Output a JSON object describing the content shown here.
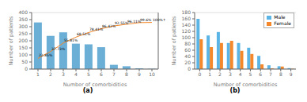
{
  "chart_data": [
    {
      "type": "bar",
      "title": "(a)",
      "xlabel": "Number of comorbidities",
      "ylabel": "Number of patients",
      "categories": [
        1,
        2,
        3,
        4,
        5,
        6,
        7,
        8,
        9,
        10
      ],
      "series": [
        {
          "type": "bar",
          "color": "#6baed6",
          "values": [
            330,
            235,
            260,
            180,
            175,
            155,
            30,
            20,
            5,
            2
          ]
        },
        {
          "type": "line",
          "color": "#f4882a",
          "axis": "y2",
          "values": [
            22.85,
            37.73,
            55.81,
            68.51,
            78.41,
            86.42,
            92.55,
            96.11,
            99.6,
            100.0
          ],
          "value_labels": [
            "22.85%",
            "37.73%",
            "55.81%",
            "68.51%",
            "78.41%",
            "86.42%",
            "92.55%",
            "96.11%",
            "99.6%",
            "100%↑"
          ],
          "data_labels": true
        }
      ],
      "ylim": [
        0,
        400
      ],
      "yticks": [
        0,
        50,
        100,
        150,
        200,
        250,
        300,
        350,
        400
      ],
      "y2lim": [
        0,
        121.21212121212122
      ],
      "grid": true
    },
    {
      "type": "bar",
      "title": "(b)",
      "xlabel": "Number of comorbidities",
      "ylabel": "Number of patients",
      "categories": [
        0,
        1,
        2,
        3,
        4,
        5,
        6,
        7,
        8,
        9
      ],
      "series": [
        {
          "name": "Male",
          "color": "#5ab4e5",
          "values": [
            160,
            107,
            118,
            83,
            83,
            68,
            42,
            12,
            9,
            3
          ]
        },
        {
          "name": "Female",
          "color": "#f4882a",
          "values": [
            95,
            70,
            83,
            90,
            58,
            48,
            15,
            2,
            8,
            1
          ]
        }
      ],
      "ylim": [
        0,
        180
      ],
      "yticks": [
        0,
        20,
        40,
        60,
        80,
        100,
        120,
        140,
        160,
        180
      ],
      "grid": true,
      "legend": "upper right"
    }
  ]
}
